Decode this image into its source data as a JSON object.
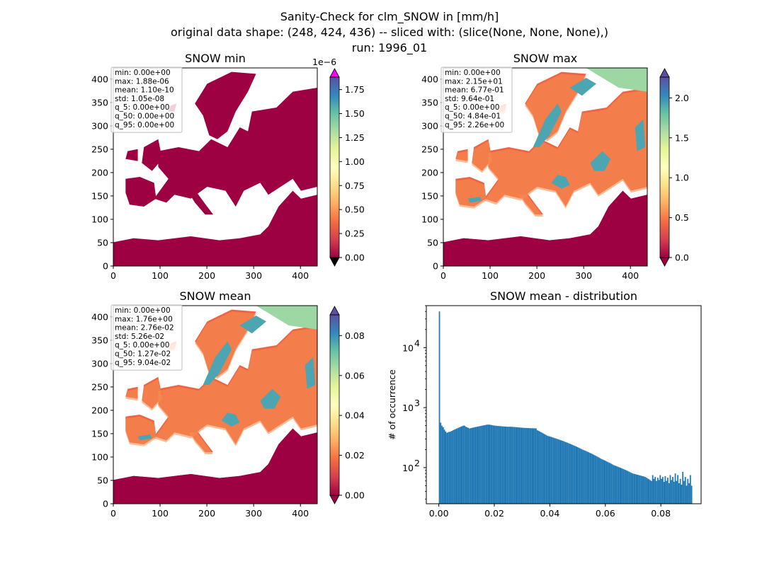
{
  "figure": {
    "title_lines": [
      "Sanity-Check for clm_SNOW in [mm/h]",
      "original data shape: (248, 424, 436) -- sliced with: (slice(None, None, None),)",
      "run: 1996_01"
    ]
  },
  "colors": {
    "ocean": "#9e0142",
    "land_missing": "#ffffff",
    "histogram_bar": "#1f77b4",
    "colormap": [
      "#9e0142",
      "#d53e4f",
      "#f46d43",
      "#fdae61",
      "#fee08b",
      "#ffffbf",
      "#e6f598",
      "#abdda4",
      "#66c2a5",
      "#3288bd",
      "#5e4fa2"
    ],
    "over_color": "#ff00ff"
  },
  "panels": {
    "min": {
      "title": "SNOW min",
      "stats": [
        "min: 0.00e+00",
        "max: 1.88e-06",
        "mean: 1.10e-10",
        "std: 1.05e-08",
        "q_5: 0.00e+00",
        "q_50: 0.00e+00",
        "q_95: 0.00e+00"
      ],
      "x_ticks": [
        "0",
        "100",
        "200",
        "300",
        "400"
      ],
      "y_ticks": [
        "0",
        "50",
        "100",
        "150",
        "200",
        "250",
        "300",
        "350",
        "400"
      ],
      "colorbar_ticks": [
        "0.00",
        "0.25",
        "0.50",
        "0.75",
        "1.00",
        "1.25",
        "1.50",
        "1.75"
      ],
      "colorbar_exponent": "1e−6",
      "vmin": 0,
      "vmax": 1.88e-06,
      "snow_level": 0
    },
    "max": {
      "title": "SNOW max",
      "stats": [
        "min: 0.00e+00",
        "max: 2.15e+01",
        "mean: 6.77e-01",
        "std: 9.64e-01",
        "q_5: 0.00e+00",
        "q_50: 4.84e-01",
        "q_95: 2.26e+00"
      ],
      "x_ticks": [
        "0",
        "100",
        "200",
        "300",
        "400"
      ],
      "y_ticks": [
        "0",
        "50",
        "100",
        "150",
        "200",
        "250",
        "300",
        "350",
        "400"
      ],
      "colorbar_ticks": [
        "0.0",
        "0.5",
        "1.0",
        "1.5",
        "2.0"
      ],
      "vmin": 0,
      "vmax": 2.26,
      "snow_level": 1
    },
    "mean": {
      "title": "SNOW mean",
      "stats": [
        "min: 0.00e+00",
        "max: 1.76e+00",
        "mean: 2.76e-02",
        "std: 5.26e-02",
        "q_5: 0.00e+00",
        "q_50: 1.27e-02",
        "q_95: 9.04e-02"
      ],
      "x_ticks": [
        "0",
        "100",
        "200",
        "300",
        "400"
      ],
      "y_ticks": [
        "0",
        "50",
        "100",
        "150",
        "200",
        "250",
        "300",
        "350",
        "400"
      ],
      "colorbar_ticks": [
        "0.00",
        "0.02",
        "0.04",
        "0.06",
        "0.08"
      ],
      "vmin": 0,
      "vmax": 0.0904,
      "snow_level": 0.6
    }
  },
  "chart_data": {
    "type": "bar",
    "title": "SNOW mean - distribution",
    "xlabel": "",
    "ylabel": "# of occurrence",
    "xlim": [
      -0.0045,
      0.0945
    ],
    "ylim": [
      25,
      50000
    ],
    "yscale": "log",
    "x_ticks": [
      "0.00",
      "0.02",
      "0.04",
      "0.06",
      "0.08"
    ],
    "y_tick_labels": [
      {
        "base": "10",
        "exp": "2",
        "value": 100
      },
      {
        "base": "10",
        "exp": "3",
        "value": 1000
      },
      {
        "base": "10",
        "exp": "4",
        "value": 10000
      }
    ],
    "bin_start": 0,
    "bin_width": 0.000452,
    "counts": [
      40000,
      560,
      500,
      470,
      430,
      400,
      380,
      390,
      395,
      400,
      410,
      420,
      430,
      440,
      450,
      460,
      470,
      480,
      490,
      500,
      500,
      480,
      470,
      460,
      450,
      455,
      460,
      465,
      470,
      475,
      480,
      485,
      490,
      495,
      500,
      505,
      510,
      515,
      520,
      520,
      520,
      515,
      510,
      505,
      500,
      498,
      496,
      494,
      492,
      490,
      488,
      486,
      484,
      482,
      480,
      480,
      480,
      480,
      478,
      476,
      474,
      472,
      470,
      468,
      466,
      464,
      462,
      460,
      459,
      458,
      457,
      456,
      455,
      454,
      453,
      452,
      451,
      450,
      420,
      410,
      400,
      390,
      380,
      370,
      360,
      350,
      340,
      335,
      330,
      325,
      320,
      315,
      310,
      305,
      300,
      295,
      290,
      285,
      280,
      275,
      270,
      265,
      260,
      255,
      250,
      245,
      240,
      235,
      230,
      225,
      220,
      215,
      210,
      205,
      200,
      196,
      192,
      188,
      184,
      180,
      176,
      172,
      168,
      164,
      160,
      156,
      152,
      148,
      144,
      140,
      137,
      134,
      131,
      128,
      125,
      122,
      119,
      116,
      113,
      110,
      108,
      106,
      104,
      102,
      100,
      98,
      96,
      94,
      92,
      90,
      88,
      86,
      84,
      82,
      80,
      79,
      78,
      77,
      76,
      75,
      74,
      73,
      72,
      71,
      70,
      68,
      66,
      64,
      62,
      60,
      75,
      65,
      70,
      60,
      68,
      62,
      75,
      65,
      70,
      58,
      72,
      60,
      68,
      55,
      75,
      62,
      70,
      58,
      80,
      60,
      75,
      55,
      65,
      52,
      85,
      60,
      70,
      50,
      65,
      55,
      75,
      50
    ]
  }
}
